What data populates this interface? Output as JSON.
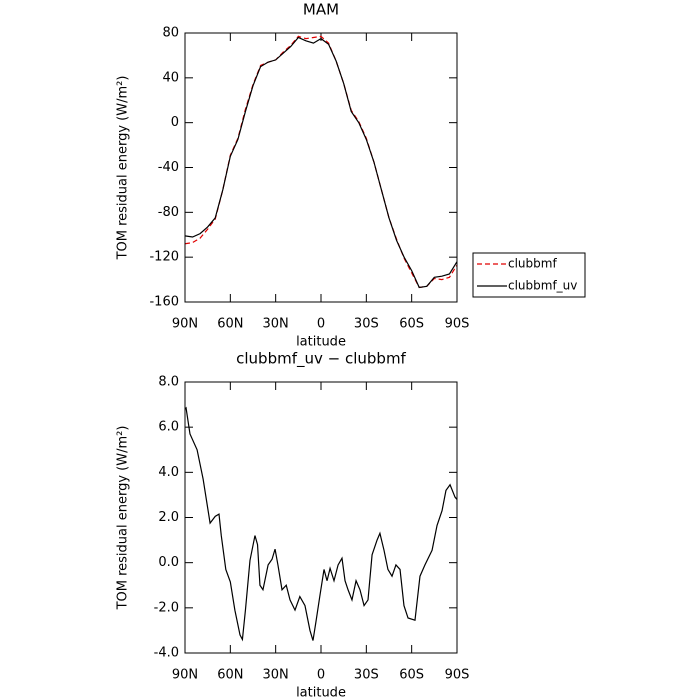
{
  "chart_data": [
    {
      "type": "line",
      "title": "MAM",
      "x_label": "latitude",
      "y_label": "TOM residual energy (W/m²)",
      "x": [
        90,
        85,
        80,
        75,
        70,
        65,
        60,
        55,
        50,
        45,
        40,
        35,
        30,
        25,
        20,
        15,
        10,
        5,
        0,
        -5,
        -10,
        -15,
        -20,
        -25,
        -30,
        -35,
        -40,
        -45,
        -50,
        -55,
        -60,
        -65,
        -70,
        -75,
        -80,
        -85,
        -90
      ],
      "series": [
        {
          "name": "clubbmf",
          "color": "#e00000",
          "dash": true,
          "values": [
            -108,
            -107,
            -103,
            -95,
            -86,
            -60,
            -29,
            -14,
            12,
            34,
            51,
            54,
            56,
            63,
            69,
            77,
            75,
            76,
            77,
            71,
            55,
            35,
            11,
            1,
            -14,
            -35,
            -60,
            -85,
            -104,
            -121,
            -134,
            -147,
            -146,
            -139,
            -140,
            -138,
            -127
          ]
        },
        {
          "name": "clubbmf_uv",
          "color": "#000000",
          "dash": false,
          "values": [
            -101,
            -102,
            -99,
            -93,
            -85,
            -60,
            -30,
            -15,
            10,
            33,
            50,
            54,
            56,
            62,
            68,
            76,
            73,
            71,
            75,
            70,
            55,
            35,
            10,
            0,
            -15,
            -35,
            -60,
            -85,
            -105,
            -120,
            -132,
            -147,
            -146,
            -138,
            -137,
            -135,
            -124
          ]
        }
      ],
      "xlim": [
        90,
        -90
      ],
      "xticks": [
        {
          "value": 90,
          "label": "90N"
        },
        {
          "value": 60,
          "label": "60N"
        },
        {
          "value": 30,
          "label": "30N"
        },
        0,
        {
          "value": -30,
          "label": "30S"
        },
        {
          "value": -60,
          "label": "60S"
        },
        {
          "value": -90,
          "label": "90S"
        }
      ],
      "ylim": [
        -160,
        80
      ],
      "yticks": [
        80,
        40,
        0,
        -40,
        -80,
        -120,
        -160
      ],
      "legend": "right"
    },
    {
      "type": "line",
      "title": "clubbmf_uv − clubbmf",
      "x_label": "latitude",
      "y_label": "TOM residual energy (W/m²)",
      "x": [
        90,
        89.3,
        86.7,
        82,
        78,
        73.4,
        70,
        67.5,
        66,
        63,
        60,
        57,
        53.6,
        52,
        50,
        47,
        43.7,
        42,
        40.4,
        38.4,
        35,
        32.4,
        30.4,
        28.5,
        25.8,
        23,
        20.5,
        17.2,
        14,
        10.6,
        7.3,
        5.3,
        3.3,
        0.7,
        -2,
        -4,
        -6,
        -8.6,
        -11.3,
        -13.9,
        -15.9,
        -17.9,
        -20.5,
        -23.2,
        -25.8,
        -28.5,
        -31.1,
        -33.8,
        -37.1,
        -39,
        -41.7,
        -44.3,
        -47,
        -49.6,
        -52.3,
        -54.9,
        -57.6,
        -62.2,
        -65.5,
        -68.8,
        -73.5,
        -76.8,
        -80.1,
        -82.7,
        -85.4,
        -88.7,
        -90
      ],
      "series": [
        {
          "name": "clubbmf_uv − clubbmf",
          "color": "#000000",
          "dash": false,
          "values": [
            6.8,
            6.85,
            5.7,
            5.0,
            3.7,
            1.75,
            2.05,
            2.15,
            1.2,
            -0.3,
            -0.85,
            -2.1,
            -3.2,
            -3.4,
            -2.1,
            0.1,
            1.2,
            0.8,
            -1.0,
            -1.2,
            -0.1,
            0.15,
            0.6,
            -0.1,
            -1.2,
            -1.0,
            -1.65,
            -2.1,
            -1.5,
            -1.9,
            -3.0,
            -3.45,
            -2.6,
            -1.45,
            -0.3,
            -0.8,
            -0.25,
            -0.8,
            -0.1,
            0.2,
            -0.8,
            -1.2,
            -1.65,
            -0.8,
            -1.2,
            -1.9,
            -1.65,
            0.35,
            1.0,
            1.3,
            0.55,
            -0.3,
            -0.6,
            -0.1,
            -0.3,
            -1.9,
            -2.45,
            -2.55,
            -0.6,
            -0.1,
            0.55,
            1.65,
            2.3,
            3.2,
            3.45,
            2.9,
            2.8
          ]
        }
      ],
      "xlim": [
        90,
        -90
      ],
      "xticks": [
        {
          "value": 90,
          "label": "90N"
        },
        {
          "value": 60,
          "label": "60N"
        },
        {
          "value": 30,
          "label": "30N"
        },
        0,
        {
          "value": -30,
          "label": "30S"
        },
        {
          "value": -60,
          "label": "60S"
        },
        {
          "value": -90,
          "label": "90S"
        }
      ],
      "ylim": [
        -4,
        8
      ],
      "yticks": [
        {
          "value": 8,
          "label": "8.0"
        },
        {
          "value": 6,
          "label": "6.0"
        },
        {
          "value": 4,
          "label": "4.0"
        },
        {
          "value": 2,
          "label": "2.0"
        },
        {
          "value": 0,
          "label": "0.0"
        },
        {
          "value": -2,
          "label": "-2.0"
        },
        {
          "value": -4,
          "label": "-4.0"
        }
      ]
    }
  ]
}
